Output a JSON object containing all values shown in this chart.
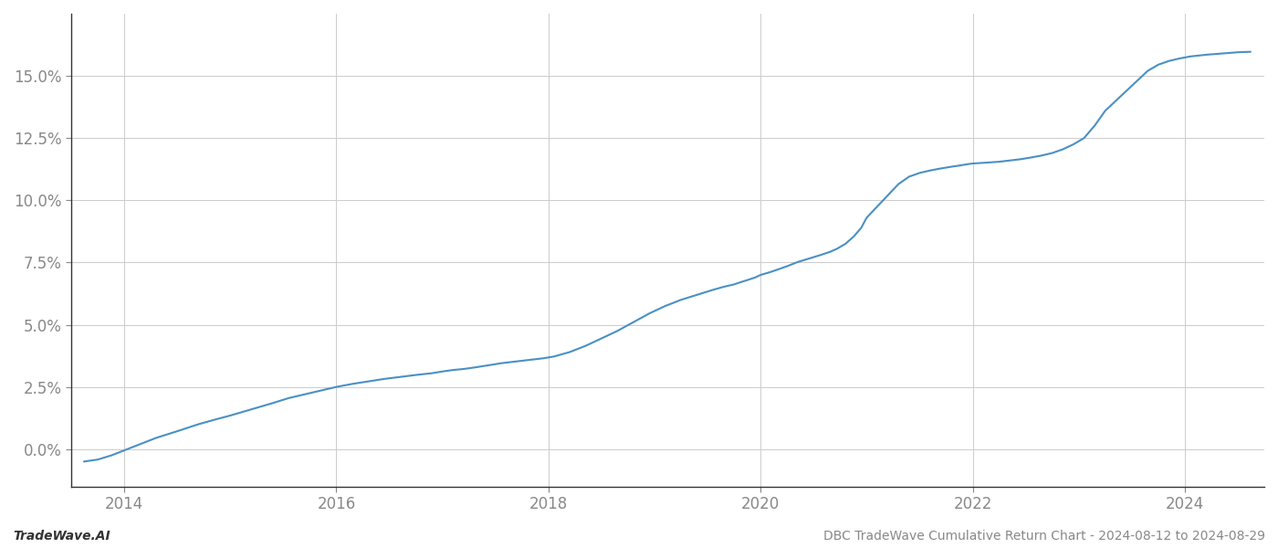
{
  "title": "",
  "footer_left": "TradeWave.AI",
  "footer_right": "DBC TradeWave Cumulative Return Chart - 2024-08-12 to 2024-08-29",
  "line_color": "#4a90c4",
  "line_width": 1.5,
  "background_color": "#ffffff",
  "grid_color": "#cccccc",
  "x_values": [
    2013.62,
    2013.75,
    2013.88,
    2014.0,
    2014.15,
    2014.3,
    2014.5,
    2014.7,
    2014.85,
    2015.0,
    2015.2,
    2015.4,
    2015.55,
    2015.7,
    2015.85,
    2016.0,
    2016.15,
    2016.3,
    2016.45,
    2016.6,
    2016.75,
    2016.9,
    2017.0,
    2017.1,
    2017.2,
    2017.3,
    2017.45,
    2017.55,
    2017.65,
    2017.75,
    2017.85,
    2017.95,
    2018.05,
    2018.2,
    2018.35,
    2018.5,
    2018.65,
    2018.8,
    2018.95,
    2019.1,
    2019.25,
    2019.4,
    2019.55,
    2019.65,
    2019.75,
    2019.82,
    2019.88,
    2019.95,
    2020.0,
    2020.08,
    2020.15,
    2020.25,
    2020.35,
    2020.45,
    2020.55,
    2020.65,
    2020.72,
    2020.8,
    2020.88,
    2020.95,
    2021.0,
    2021.1,
    2021.2,
    2021.3,
    2021.4,
    2021.5,
    2021.6,
    2021.7,
    2021.8,
    2021.88,
    2021.95,
    2022.0,
    2022.08,
    2022.15,
    2022.25,
    2022.35,
    2022.45,
    2022.55,
    2022.65,
    2022.75,
    2022.85,
    2022.95,
    2023.05,
    2023.15,
    2023.25,
    2023.4,
    2023.55,
    2023.65,
    2023.75,
    2023.85,
    2023.95,
    2024.05,
    2024.2,
    2024.35,
    2024.5,
    2024.62
  ],
  "y_values": [
    -0.5,
    -0.42,
    -0.25,
    -0.05,
    0.2,
    0.45,
    0.72,
    1.0,
    1.18,
    1.35,
    1.6,
    1.85,
    2.05,
    2.2,
    2.35,
    2.5,
    2.62,
    2.72,
    2.82,
    2.9,
    2.98,
    3.05,
    3.12,
    3.18,
    3.22,
    3.28,
    3.38,
    3.45,
    3.5,
    3.55,
    3.6,
    3.65,
    3.72,
    3.9,
    4.15,
    4.45,
    4.75,
    5.1,
    5.45,
    5.75,
    6.0,
    6.2,
    6.4,
    6.52,
    6.62,
    6.72,
    6.8,
    6.9,
    7.0,
    7.1,
    7.2,
    7.35,
    7.52,
    7.65,
    7.78,
    7.92,
    8.05,
    8.25,
    8.55,
    8.9,
    9.3,
    9.75,
    10.2,
    10.65,
    10.95,
    11.1,
    11.2,
    11.28,
    11.35,
    11.4,
    11.45,
    11.48,
    11.5,
    11.52,
    11.55,
    11.6,
    11.65,
    11.72,
    11.8,
    11.9,
    12.05,
    12.25,
    12.5,
    13.0,
    13.6,
    14.2,
    14.8,
    15.2,
    15.45,
    15.6,
    15.7,
    15.78,
    15.85,
    15.9,
    15.95,
    15.97
  ],
  "xlim": [
    2013.5,
    2024.75
  ],
  "ylim": [
    -1.5,
    17.5
  ],
  "yticks": [
    0.0,
    2.5,
    5.0,
    7.5,
    10.0,
    12.5,
    15.0
  ],
  "xticks": [
    2014,
    2016,
    2018,
    2020,
    2022,
    2024
  ],
  "footer_fontsize": 10,
  "tick_fontsize": 12,
  "tick_color": "#888888",
  "spine_color": "#333333",
  "left_spine_color": "#333333"
}
